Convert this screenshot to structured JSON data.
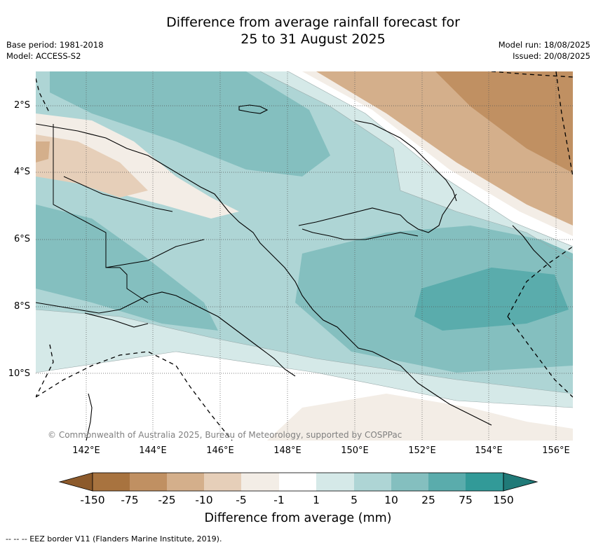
{
  "title": {
    "line1": "Difference from average rainfall forecast for",
    "line2": "25 to 31 August 2025"
  },
  "meta_left": {
    "base_period": "Base period: 1981-2018",
    "model": "Model: ACCESS-S2"
  },
  "meta_right": {
    "model_run": "Model run: 18/08/2025",
    "issued": "Issued: 20/08/2025"
  },
  "map": {
    "lat_ticks": [
      "2°S",
      "4°S",
      "6°S",
      "8°S",
      "10°S"
    ],
    "lon_ticks": [
      "142°E",
      "144°E",
      "146°E",
      "148°E",
      "150°E",
      "152°E",
      "154°E",
      "156°E"
    ],
    "extent": {
      "lon": [
        140.5,
        156.5
      ],
      "lat": [
        -12,
        -1
      ]
    },
    "copyright": "© Commonwealth of Australia 2025, Bureau of Meteorology, supported by COSPPac"
  },
  "colorbar": {
    "labels": [
      "-150",
      "-75",
      "-25",
      "-10",
      "-5",
      "-1",
      "1",
      "5",
      "10",
      "25",
      "75",
      "150"
    ],
    "colors": [
      "#8c5a2b",
      "#a8733f",
      "#c09062",
      "#d4af8b",
      "#e6cfb9",
      "#f3ede6",
      "#ffffff",
      "#d5e9e8",
      "#aed5d5",
      "#84bfbf",
      "#5aacac",
      "#329a98",
      "#207a78"
    ],
    "title": "Difference from average (mm)"
  },
  "footer": "--  --  -- EEZ border V11 (Flanders Marine Institute, 2019)."
}
